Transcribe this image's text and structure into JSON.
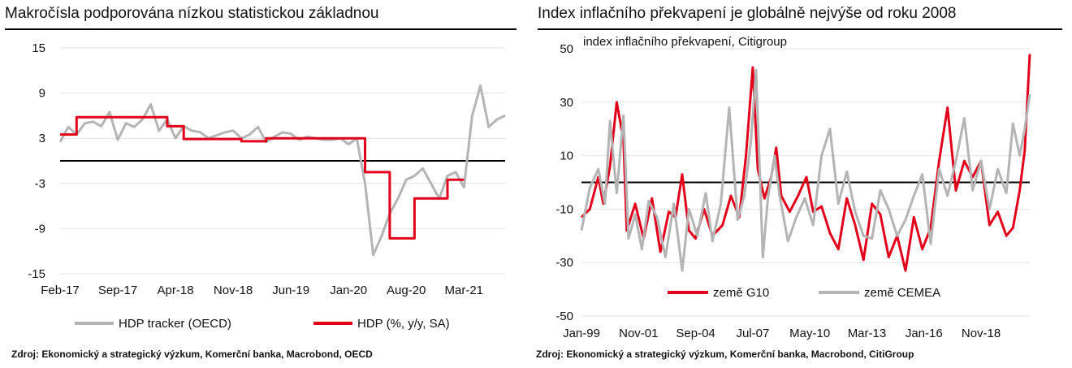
{
  "left": {
    "title": "Makročísla podporována nízkou statistickou základnou",
    "source": "Zdroj: Ekonomický a strategický výzkum, Komerční banka, Macrobond, OECD"
  },
  "right": {
    "title": "Index inflačního překvapení je globálně nejvýše od roku 2008",
    "source": "Zdroj: Ekonomický a strategický výzkum, Komerční banka, Macrobond, CitiGroup"
  },
  "colors": {
    "red": "#e2001a",
    "grey": "#b4b4b4",
    "axis": "#000000"
  },
  "chart_data": [
    {
      "type": "line",
      "title": "Makročísla podporována nízkou statistickou základnou",
      "x_unit": "month",
      "x_range": [
        "2017-02",
        "2021-08"
      ],
      "ylim": [
        -15,
        15
      ],
      "yticks": [
        15,
        9,
        3,
        -3,
        -9,
        -15
      ],
      "xticks": [
        "Feb-17",
        "Sep-17",
        "Apr-18",
        "Nov-18",
        "Jun-19",
        "Jan-20",
        "Aug-20",
        "Mar-21"
      ],
      "xtick_dates": [
        "2017-02",
        "2017-09",
        "2018-04",
        "2018-11",
        "2019-06",
        "2020-01",
        "2020-08",
        "2021-03"
      ],
      "zero_line": true,
      "legend_position": "bottom",
      "series": [
        {
          "name": "HDP tracker (OECD)",
          "color": "#b4b4b4",
          "x": [
            "2017-02",
            "2017-03",
            "2017-04",
            "2017-05",
            "2017-06",
            "2017-07",
            "2017-08",
            "2017-09",
            "2017-10",
            "2017-11",
            "2017-12",
            "2018-01",
            "2018-02",
            "2018-03",
            "2018-04",
            "2018-05",
            "2018-06",
            "2018-07",
            "2018-08",
            "2018-09",
            "2018-10",
            "2018-11",
            "2018-12",
            "2019-01",
            "2019-02",
            "2019-03",
            "2019-04",
            "2019-05",
            "2019-06",
            "2019-07",
            "2019-08",
            "2019-09",
            "2019-10",
            "2019-11",
            "2019-12",
            "2020-01",
            "2020-02",
            "2020-03",
            "2020-04",
            "2020-05",
            "2020-06",
            "2020-07",
            "2020-08",
            "2020-09",
            "2020-10",
            "2020-11",
            "2020-12",
            "2021-01",
            "2021-02",
            "2021-03",
            "2021-04",
            "2021-05",
            "2021-06",
            "2021-07",
            "2021-08"
          ],
          "values": [
            2.5,
            4.5,
            3.5,
            5.0,
            5.2,
            4.6,
            6.5,
            2.8,
            5.0,
            4.5,
            5.5,
            7.5,
            4.0,
            5.5,
            3.0,
            4.6,
            4.0,
            3.8,
            3.0,
            3.4,
            3.8,
            4.0,
            3.0,
            3.5,
            4.5,
            2.5,
            3.2,
            3.8,
            3.6,
            2.8,
            3.2,
            3.0,
            2.8,
            2.8,
            3.0,
            2.2,
            3.0,
            -3.0,
            -12.5,
            -10.0,
            -7.0,
            -5.0,
            -2.5,
            -2.0,
            -1.0,
            -3.0,
            -5.0,
            -2.0,
            -1.5,
            -3.5,
            6.0,
            10.0,
            4.5,
            5.5,
            6.0
          ]
        },
        {
          "name": "HDP (%, y/y, SA)",
          "color": "#e2001a",
          "x": [
            "2017-02",
            "2017-04",
            "2017-06",
            "2017-09",
            "2017-12",
            "2018-03",
            "2018-05",
            "2018-09",
            "2018-12",
            "2019-03",
            "2019-06",
            "2019-09",
            "2019-12",
            "2020-02",
            "2020-03",
            "2020-06",
            "2020-08",
            "2020-09",
            "2020-12",
            "2021-01",
            "2021-03"
          ],
          "values": [
            3.5,
            5.8,
            5.8,
            5.8,
            5.8,
            4.6,
            2.9,
            2.9,
            2.6,
            3.0,
            3.0,
            3.0,
            3.0,
            3.0,
            -1.5,
            -10.3,
            -10.3,
            -5.0,
            -5.0,
            -2.5,
            -2.5
          ]
        }
      ]
    },
    {
      "type": "line",
      "title": "Index inflačního překvapení je globálně nejvýše od roku 2008",
      "subtitle": "index inflačního překvapení, Citigroup",
      "x_unit": "month",
      "x_range": [
        "1999-01",
        "2021-04"
      ],
      "ylim": [
        -50,
        50
      ],
      "yticks": [
        50,
        30,
        10,
        -10,
        -30,
        -50
      ],
      "xticks": [
        "Jan-99",
        "Nov-01",
        "Sep-04",
        "Jul-07",
        "May-10",
        "Mar-13",
        "Jan-16",
        "Nov-18"
      ],
      "xtick_dates": [
        "1999-01",
        "2001-11",
        "2004-09",
        "2007-07",
        "2010-05",
        "2013-03",
        "2016-01",
        "2018-11"
      ],
      "zero_line": true,
      "legend_position": "bottom",
      "series": [
        {
          "name": "země G10",
          "color": "#e2001a",
          "x": [
            "1999-01",
            "1999-06",
            "1999-11",
            "2000-02",
            "2000-06",
            "2000-10",
            "2001-02",
            "2001-04",
            "2001-09",
            "2002-02",
            "2002-07",
            "2002-12",
            "2003-05",
            "2003-09",
            "2004-01",
            "2004-05",
            "2004-09",
            "2005-02",
            "2005-07",
            "2006-01",
            "2006-06",
            "2006-11",
            "2007-03",
            "2007-07",
            "2007-10",
            "2008-02",
            "2008-06",
            "2008-09",
            "2008-12",
            "2009-05",
            "2009-10",
            "2010-03",
            "2010-07",
            "2010-12",
            "2011-05",
            "2011-10",
            "2012-03",
            "2012-08",
            "2013-01",
            "2013-06",
            "2013-11",
            "2014-04",
            "2014-09",
            "2015-02",
            "2015-07",
            "2015-12",
            "2016-05",
            "2016-10",
            "2017-03",
            "2017-08",
            "2018-01",
            "2018-06",
            "2018-11",
            "2019-04",
            "2019-09",
            "2020-02",
            "2020-06",
            "2020-10",
            "2021-01",
            "2021-04"
          ],
          "values": [
            -13,
            -10,
            2,
            -8,
            6,
            30,
            16,
            -18,
            -8,
            -21,
            -6,
            -26,
            -11,
            -13,
            3,
            -18,
            -21,
            -10,
            -20,
            -16,
            -5,
            -13,
            10,
            43,
            5,
            -6,
            2,
            13,
            -5,
            -11,
            -5,
            2,
            -11,
            -9,
            -19,
            -25,
            -6,
            -16,
            -29,
            -8,
            -12,
            -28,
            -20,
            -33,
            -13,
            -25,
            -17,
            8,
            28,
            -3,
            8,
            2,
            8,
            -16,
            -11,
            -20,
            -17,
            -3,
            12,
            48
          ]
        },
        {
          "name": "země CEMEA",
          "color": "#b4b4b4",
          "x": [
            "1999-01",
            "1999-06",
            "1999-11",
            "2000-03",
            "2000-06",
            "2000-10",
            "2001-02",
            "2001-05",
            "2001-09",
            "2002-01",
            "2002-05",
            "2002-10",
            "2003-03",
            "2003-08",
            "2004-01",
            "2004-05",
            "2004-10",
            "2005-03",
            "2005-07",
            "2005-12",
            "2006-05",
            "2006-10",
            "2007-02",
            "2007-06",
            "2007-09",
            "2008-01",
            "2008-04",
            "2008-08",
            "2008-11",
            "2009-04",
            "2009-09",
            "2010-02",
            "2010-07",
            "2010-12",
            "2011-05",
            "2011-10",
            "2012-03",
            "2012-08",
            "2013-01",
            "2013-06",
            "2013-11",
            "2014-04",
            "2014-09",
            "2015-02",
            "2015-07",
            "2015-12",
            "2016-05",
            "2016-10",
            "2017-03",
            "2017-08",
            "2018-01",
            "2018-06",
            "2018-11",
            "2019-04",
            "2019-09",
            "2020-02",
            "2020-06",
            "2020-10",
            "2021-01",
            "2021-04"
          ],
          "values": [
            -18,
            -2,
            5,
            -8,
            23,
            -4,
            25,
            -21,
            -12,
            -25,
            -7,
            -13,
            -28,
            -8,
            -33,
            -10,
            -20,
            -4,
            -22,
            -8,
            28,
            -14,
            -5,
            16,
            42,
            -28,
            -6,
            10,
            -5,
            -22,
            -13,
            -6,
            -16,
            10,
            20,
            -8,
            4,
            -11,
            -20,
            -21,
            -3,
            -10,
            -20,
            -14,
            -5,
            3,
            -23,
            5,
            -5,
            8,
            24,
            -3,
            8,
            -10,
            5,
            -4,
            22,
            10,
            20,
            33
          ]
        }
      ]
    }
  ]
}
